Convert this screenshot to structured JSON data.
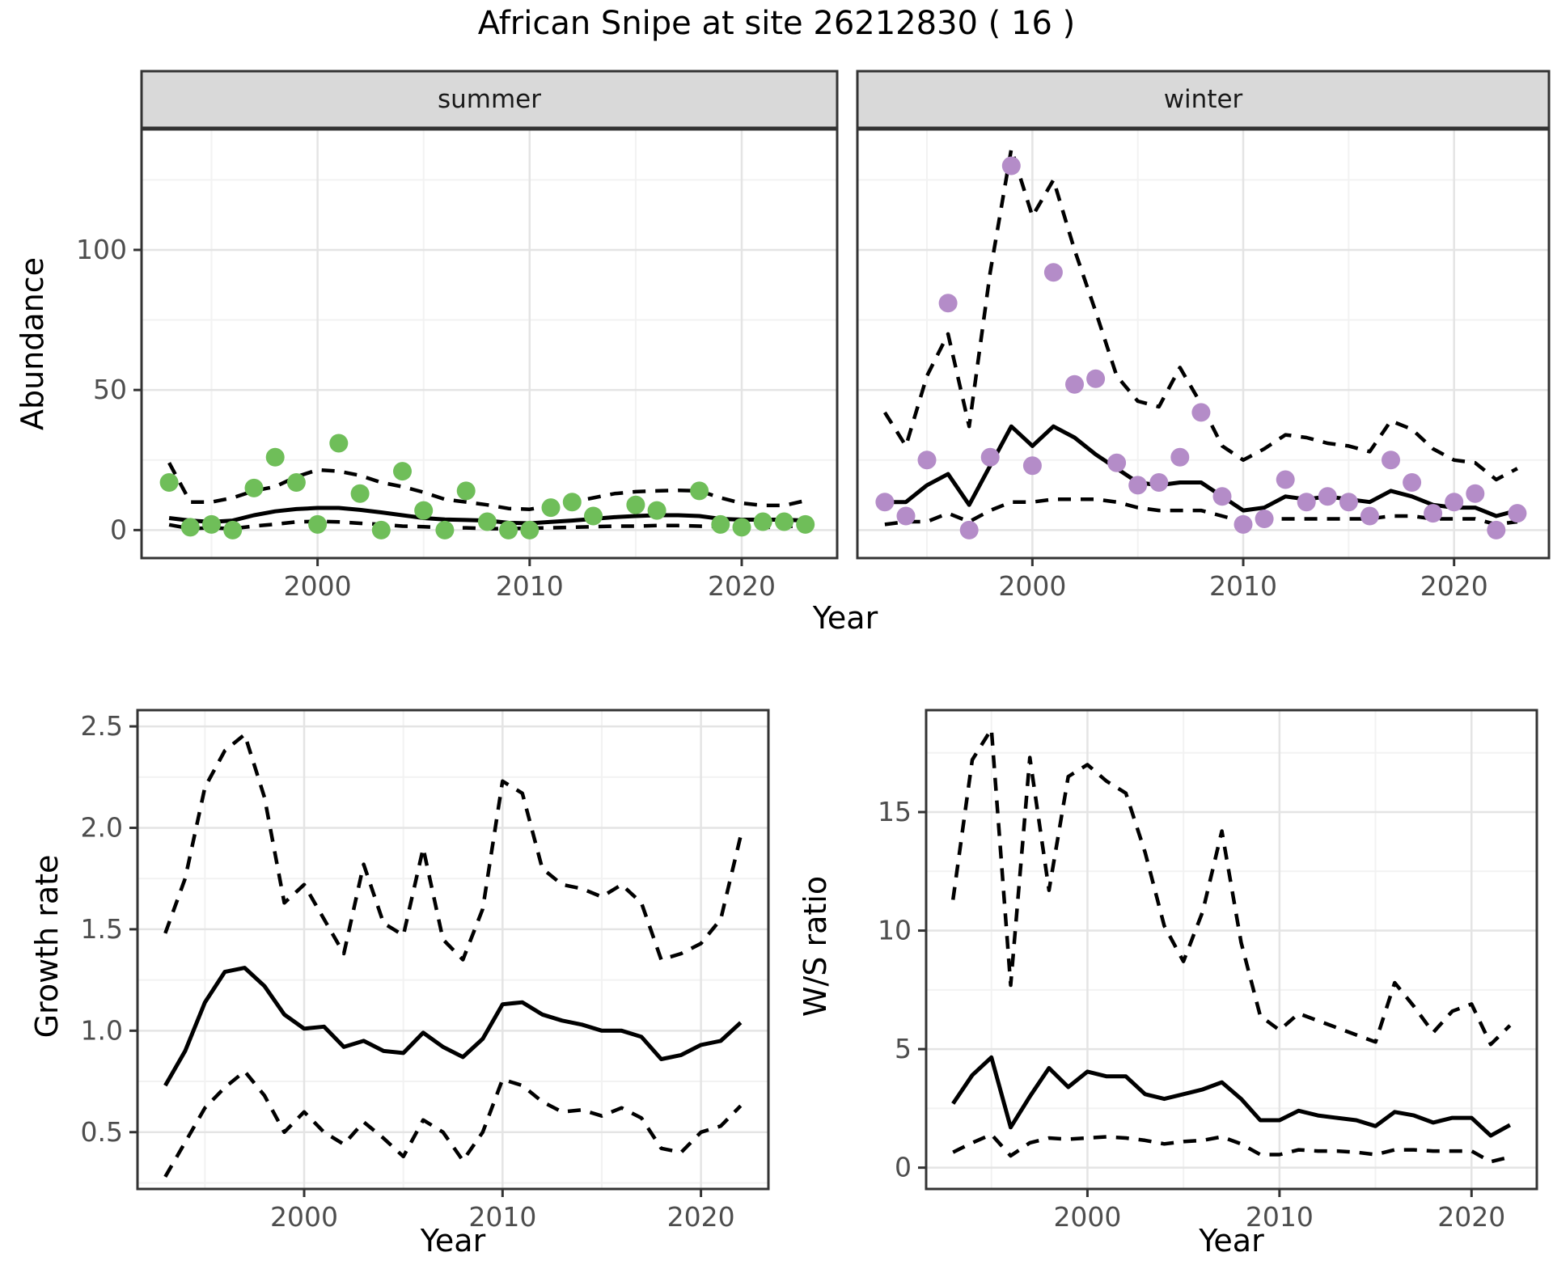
{
  "title": "African Snipe at site 26212830 ( 16 )",
  "facets": [
    "summer",
    "winter"
  ],
  "axes": {
    "year_label": "Year",
    "abundance_label": "Abundance",
    "growth_label": "Growth rate",
    "ws_label": "W/S ratio"
  },
  "colors": {
    "summer_points": "#6FBE59",
    "winter_points": "#B48CC8",
    "line": "#000000",
    "strip_bg": "#D9D9D9",
    "panel_border": "#333333",
    "grid_major": "#E4E4E4",
    "grid_minor": "#F2F2F2",
    "tick_text": "#4D4D4D",
    "tick_mark": "#333333"
  },
  "chart_data": [
    {
      "key": "abundance_summer",
      "type": "line",
      "facet": "summer",
      "xlabel": "Year",
      "ylabel": "Abundance",
      "xlim": [
        1991.7,
        2024.5
      ],
      "ylim": [
        -10,
        143
      ],
      "x_ticks": [
        2000,
        2010,
        2020
      ],
      "x_minor": [
        1995,
        2005,
        2015
      ],
      "y_ticks": [
        0,
        50,
        100
      ],
      "y_minor": [
        25,
        75,
        125
      ],
      "y_tick_labels": [
        "0",
        "50",
        "100"
      ],
      "show_y_axis": true,
      "series": [
        {
          "name": "upper_ci",
          "kind": "line",
          "dash": true,
          "start": 1993,
          "values": [
            24,
            10,
            10,
            11.5,
            14,
            15.5,
            19,
            21.5,
            21,
            19.5,
            17,
            15.5,
            13.5,
            11,
            10,
            9,
            7.7,
            7.4,
            8.7,
            10,
            11.5,
            13,
            13.7,
            14,
            14.2,
            14,
            11.5,
            9.6,
            8.8,
            8.8,
            10.5
          ]
        },
        {
          "name": "lower_ci",
          "kind": "line",
          "dash": true,
          "start": 1993,
          "values": [
            1.9,
            0.5,
            0.8,
            0.5,
            1.4,
            2.1,
            2.9,
            3.1,
            2.9,
            2.4,
            2.0,
            1.4,
            1.2,
            0.8,
            0.8,
            0.5,
            0.5,
            0.7,
            0.8,
            1.0,
            1.2,
            1.4,
            1.4,
            1.6,
            1.6,
            1.4,
            1.2,
            1.0,
            1.0,
            1.0,
            2.0
          ]
        },
        {
          "name": "fit",
          "kind": "line",
          "dash": false,
          "start": 1993,
          "values": [
            4.3,
            3.4,
            2.9,
            3.4,
            5.3,
            6.7,
            7.5,
            7.9,
            7.9,
            7.2,
            6.3,
            5.3,
            4.3,
            3.8,
            3.6,
            3.4,
            2.6,
            2.4,
            2.9,
            3.4,
            4.0,
            4.6,
            5.0,
            5.3,
            5.3,
            5.0,
            4.0,
            3.7,
            3.7,
            3.7,
            3.4
          ]
        },
        {
          "name": "observed",
          "kind": "points",
          "color_key": "summer_points",
          "start": 1993,
          "values": [
            17,
            1,
            2,
            0,
            15,
            26,
            17,
            2,
            31,
            13,
            0,
            21,
            7,
            0,
            14,
            3,
            0,
            0,
            8,
            10,
            5,
            null,
            9,
            7,
            null,
            14,
            2,
            1,
            3,
            3,
            2
          ]
        }
      ]
    },
    {
      "key": "abundance_winter",
      "type": "line",
      "facet": "winter",
      "xlabel": "Year",
      "ylabel": "Abundance",
      "xlim": [
        1991.7,
        2024.5
      ],
      "ylim": [
        -10,
        143
      ],
      "x_ticks": [
        2000,
        2010,
        2020
      ],
      "x_minor": [
        1995,
        2005,
        2015
      ],
      "y_ticks": [
        0,
        50,
        100
      ],
      "y_minor": [
        25,
        75,
        125
      ],
      "y_tick_labels": [
        "0",
        "50",
        "100"
      ],
      "show_y_axis": false,
      "series": [
        {
          "name": "upper_ci",
          "kind": "line",
          "dash": true,
          "start": 1993,
          "values": [
            42,
            30,
            55,
            70,
            37,
            92,
            136,
            112,
            125,
            100,
            78,
            55,
            46,
            44,
            58,
            45,
            30,
            25,
            29,
            34,
            33,
            31,
            30,
            28,
            39,
            36,
            29,
            25,
            24,
            18,
            22
          ]
        },
        {
          "name": "lower_ci",
          "kind": "line",
          "dash": true,
          "start": 1993,
          "values": [
            2,
            3,
            3,
            6,
            3,
            7,
            10,
            10,
            11,
            11,
            11,
            10,
            8,
            7,
            7,
            7,
            5,
            3,
            4,
            4,
            4,
            4,
            4,
            4,
            5,
            5,
            4,
            4,
            4,
            2,
            3
          ]
        },
        {
          "name": "fit",
          "kind": "line",
          "dash": false,
          "start": 1993,
          "values": [
            10,
            10,
            16,
            20,
            9,
            23,
            37,
            30,
            37,
            33,
            27,
            22,
            17,
            16,
            17,
            17,
            12,
            7,
            8,
            12,
            11,
            12,
            11,
            10,
            14,
            12,
            9,
            8,
            8,
            5,
            7
          ]
        },
        {
          "name": "observed",
          "kind": "points",
          "color_key": "winter_points",
          "start": 1993,
          "values": [
            10,
            5,
            25,
            81,
            0,
            26,
            130,
            23,
            92,
            52,
            54,
            24,
            16,
            17,
            26,
            42,
            12,
            2,
            4,
            18,
            10,
            12,
            10,
            5,
            25,
            17,
            6,
            10,
            13,
            0,
            6
          ]
        }
      ]
    },
    {
      "key": "growth",
      "type": "line",
      "xlabel": "Year",
      "ylabel": "Growth rate",
      "xlim": [
        1991.6,
        2023.4
      ],
      "ylim": [
        0.22,
        2.58
      ],
      "x_ticks": [
        2000,
        2010,
        2020
      ],
      "x_minor": [
        1995,
        2005,
        2015
      ],
      "y_ticks": [
        0.5,
        1.0,
        1.5,
        2.0,
        2.5
      ],
      "y_minor": [
        0.25,
        0.75,
        1.25,
        1.75,
        2.25
      ],
      "y_tick_labels": [
        "0.5",
        "1.0",
        "1.5",
        "2.0",
        "2.5"
      ],
      "show_y_axis": true,
      "series": [
        {
          "name": "upper_ci",
          "kind": "line",
          "dash": true,
          "start": 1993,
          "values": [
            1.48,
            1.75,
            2.2,
            2.38,
            2.46,
            2.15,
            1.63,
            1.72,
            1.55,
            1.38,
            1.82,
            1.53,
            1.47,
            1.9,
            1.45,
            1.35,
            1.6,
            2.23,
            2.17,
            1.8,
            1.72,
            1.7,
            1.66,
            1.72,
            1.63,
            1.35,
            1.38,
            1.43,
            1.55,
            1.96
          ]
        },
        {
          "name": "lower_ci",
          "kind": "line",
          "dash": true,
          "start": 1993,
          "values": [
            0.28,
            0.45,
            0.62,
            0.72,
            0.8,
            0.68,
            0.5,
            0.6,
            0.5,
            0.44,
            0.55,
            0.47,
            0.38,
            0.56,
            0.5,
            0.36,
            0.5,
            0.76,
            0.73,
            0.65,
            0.6,
            0.61,
            0.58,
            0.62,
            0.57,
            0.42,
            0.4,
            0.5,
            0.53,
            0.63
          ]
        },
        {
          "name": "fit",
          "kind": "line",
          "dash": false,
          "start": 1993,
          "values": [
            0.73,
            0.9,
            1.14,
            1.29,
            1.31,
            1.22,
            1.08,
            1.01,
            1.02,
            0.92,
            0.95,
            0.9,
            0.89,
            0.99,
            0.92,
            0.87,
            0.96,
            1.13,
            1.14,
            1.08,
            1.05,
            1.03,
            1.0,
            1.0,
            0.97,
            0.86,
            0.88,
            0.93,
            0.95,
            1.04
          ]
        }
      ]
    },
    {
      "key": "ws",
      "type": "line",
      "xlabel": "Year",
      "ylabel": "W/S ratio",
      "xlim": [
        1991.6,
        2023.4
      ],
      "ylim": [
        -0.9,
        19.3
      ],
      "x_ticks": [
        2000,
        2010,
        2020
      ],
      "x_minor": [
        1995,
        2005,
        2015
      ],
      "y_ticks": [
        0,
        5,
        10,
        15
      ],
      "y_minor": [
        2.5,
        7.5,
        12.5,
        17.5
      ],
      "y_tick_labels": [
        "0",
        "5",
        "10",
        "15"
      ],
      "show_y_axis": true,
      "series": [
        {
          "name": "upper_ci",
          "kind": "line",
          "dash": true,
          "start": 1993,
          "values": [
            11.3,
            17.2,
            18.5,
            7.7,
            17.3,
            11.7,
            16.5,
            17.0,
            16.3,
            15.8,
            13.3,
            10.2,
            8.7,
            10.8,
            14.2,
            9.5,
            6.4,
            5.8,
            6.5,
            6.2,
            5.9,
            5.6,
            5.3,
            7.8,
            6.8,
            5.7,
            6.6,
            6.9,
            5.2,
            6.0
          ]
        },
        {
          "name": "lower_ci",
          "kind": "line",
          "dash": true,
          "start": 1993,
          "values": [
            0.65,
            1.05,
            1.4,
            0.5,
            1.05,
            1.25,
            1.2,
            1.25,
            1.3,
            1.25,
            1.15,
            1.0,
            1.1,
            1.15,
            1.3,
            1.0,
            0.55,
            0.55,
            0.75,
            0.7,
            0.7,
            0.65,
            0.55,
            0.75,
            0.75,
            0.7,
            0.7,
            0.7,
            0.25,
            0.45
          ]
        },
        {
          "name": "fit",
          "kind": "line",
          "dash": false,
          "start": 1993,
          "values": [
            2.7,
            3.9,
            4.65,
            1.7,
            3.0,
            4.2,
            3.4,
            4.05,
            3.85,
            3.85,
            3.1,
            2.9,
            3.1,
            3.3,
            3.6,
            2.9,
            2.0,
            2.0,
            2.4,
            2.2,
            2.1,
            2.0,
            1.75,
            2.35,
            2.2,
            1.9,
            2.1,
            2.1,
            1.35,
            1.8
          ]
        }
      ]
    }
  ]
}
